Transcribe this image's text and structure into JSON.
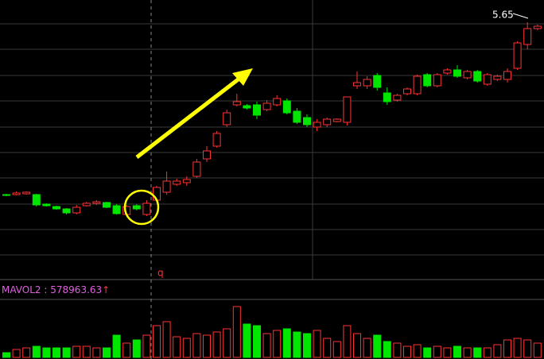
{
  "chart_data": {
    "type": "candlestick",
    "ylim": [
      2.43,
      5.93
    ],
    "open": [
      3.48,
      3.48,
      3.49,
      3.48,
      3.36,
      3.33,
      3.3,
      3.25,
      3.34,
      3.37,
      3.38,
      3.34,
      3.23,
      3.34,
      3.23,
      3.41,
      3.51,
      3.61,
      3.63,
      3.71,
      3.93,
      4.09,
      4.36,
      4.61,
      4.6,
      4.61,
      4.55,
      4.61,
      4.66,
      4.53,
      4.45,
      4.33,
      4.36,
      4.4,
      4.39,
      4.85,
      4.85,
      4.98,
      4.76,
      4.67,
      4.75,
      4.75,
      4.99,
      4.85,
      5.01,
      5.05,
      4.95,
      5.03,
      4.87,
      4.93,
      4.93,
      5.07,
      5.37,
      5.57
    ],
    "high": [
      3.49,
      3.52,
      3.52,
      3.49,
      3.37,
      3.34,
      3.31,
      3.35,
      3.39,
      3.41,
      3.39,
      3.36,
      3.35,
      3.36,
      3.41,
      3.59,
      3.77,
      3.68,
      3.71,
      3.93,
      4.09,
      4.28,
      4.55,
      4.75,
      4.62,
      4.65,
      4.67,
      4.73,
      4.69,
      4.57,
      4.49,
      4.43,
      4.45,
      4.44,
      4.71,
      5.03,
      4.97,
      5.01,
      4.83,
      4.75,
      4.83,
      4.99,
      5.01,
      5.01,
      5.07,
      5.11,
      5.05,
      5.05,
      5.01,
      4.99,
      5.07,
      5.41,
      5.65,
      5.62
    ],
    "low": [
      3.46,
      3.47,
      3.48,
      3.33,
      3.33,
      3.29,
      3.23,
      3.23,
      3.33,
      3.35,
      3.31,
      3.23,
      3.21,
      3.28,
      3.21,
      3.39,
      3.48,
      3.59,
      3.59,
      3.69,
      3.89,
      4.07,
      4.33,
      4.59,
      4.55,
      4.43,
      4.53,
      4.59,
      4.49,
      4.37,
      4.33,
      4.28,
      4.33,
      4.39,
      4.35,
      4.81,
      4.81,
      4.79,
      4.61,
      4.65,
      4.73,
      4.73,
      4.83,
      4.83,
      4.99,
      4.95,
      4.93,
      4.89,
      4.85,
      4.91,
      4.89,
      5.05,
      5.31,
      5.55
    ],
    "close": [
      3.47,
      3.5,
      3.51,
      3.35,
      3.34,
      3.3,
      3.25,
      3.32,
      3.37,
      3.39,
      3.32,
      3.24,
      3.33,
      3.3,
      3.37,
      3.57,
      3.65,
      3.65,
      3.67,
      3.89,
      4.03,
      4.25,
      4.51,
      4.65,
      4.57,
      4.48,
      4.63,
      4.69,
      4.51,
      4.39,
      4.36,
      4.39,
      4.43,
      4.43,
      4.71,
      4.89,
      4.93,
      4.83,
      4.65,
      4.73,
      4.81,
      4.97,
      4.85,
      4.99,
      5.05,
      4.97,
      5.03,
      4.91,
      4.99,
      4.97,
      5.03,
      5.39,
      5.57,
      5.6
    ],
    "volume": [
      120000,
      200000,
      240000,
      280000,
      240000,
      240000,
      240000,
      280000,
      280000,
      240000,
      240000,
      560000,
      360000,
      440000,
      560000,
      800000,
      900000,
      520000,
      480000,
      600000,
      560000,
      640000,
      720000,
      1280000,
      840000,
      800000,
      600000,
      680000,
      720000,
      640000,
      600000,
      680000,
      480000,
      400000,
      800000,
      600000,
      480000,
      560000,
      400000,
      360000,
      280000,
      320000,
      240000,
      280000,
      240000,
      280000,
      240000,
      240000,
      240000,
      320000,
      440000,
      480000,
      440000,
      360000
    ],
    "vol_ylim": [
      0,
      1400000
    ],
    "up_color": "#ff3232",
    "down_color": "#00e600",
    "volume_indicator": {
      "label": "MAVOL2",
      "separator": ":",
      "value": 578963.63,
      "arrow": "↑"
    },
    "marker": "q"
  }
}
